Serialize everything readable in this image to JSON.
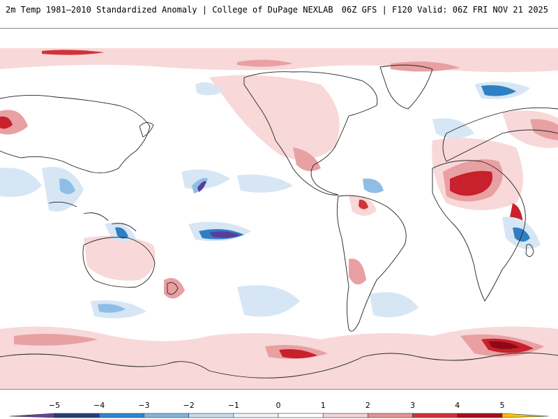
{
  "header": {
    "title_left": "2m Temp 1981–2010 Standardized Anomaly | College of DuPage NEXLAB",
    "title_right": "06Z GFS | F120 Valid: 06Z FRI NOV 21 2025"
  },
  "legend": {
    "ticks": [
      "−5",
      "−4",
      "−3",
      "−2",
      "−1",
      "0",
      "1",
      "2",
      "3",
      "4",
      "5"
    ],
    "colors": [
      "#6a3fa0",
      "#223f7a",
      "#2f86cc",
      "#7db6e3",
      "#c5dcf0",
      "#eef3f9",
      "#ffffff",
      "#f6d2d2",
      "#e59393",
      "#d0333a",
      "#a40d1b",
      "#f4c400"
    ]
  },
  "map": {
    "region": "Global",
    "colors": {
      "warm_light": "#f8d8d8",
      "warm_mid": "#e8a0a3",
      "warm_strong": "#c8202c",
      "warm_extreme": "#8c0a16",
      "cool_light": "#d6e6f4",
      "cool_mid": "#8fbde6",
      "cool_strong": "#2f7fc4",
      "cool_extreme": "#5a3c9c",
      "coast": "#222222"
    }
  }
}
